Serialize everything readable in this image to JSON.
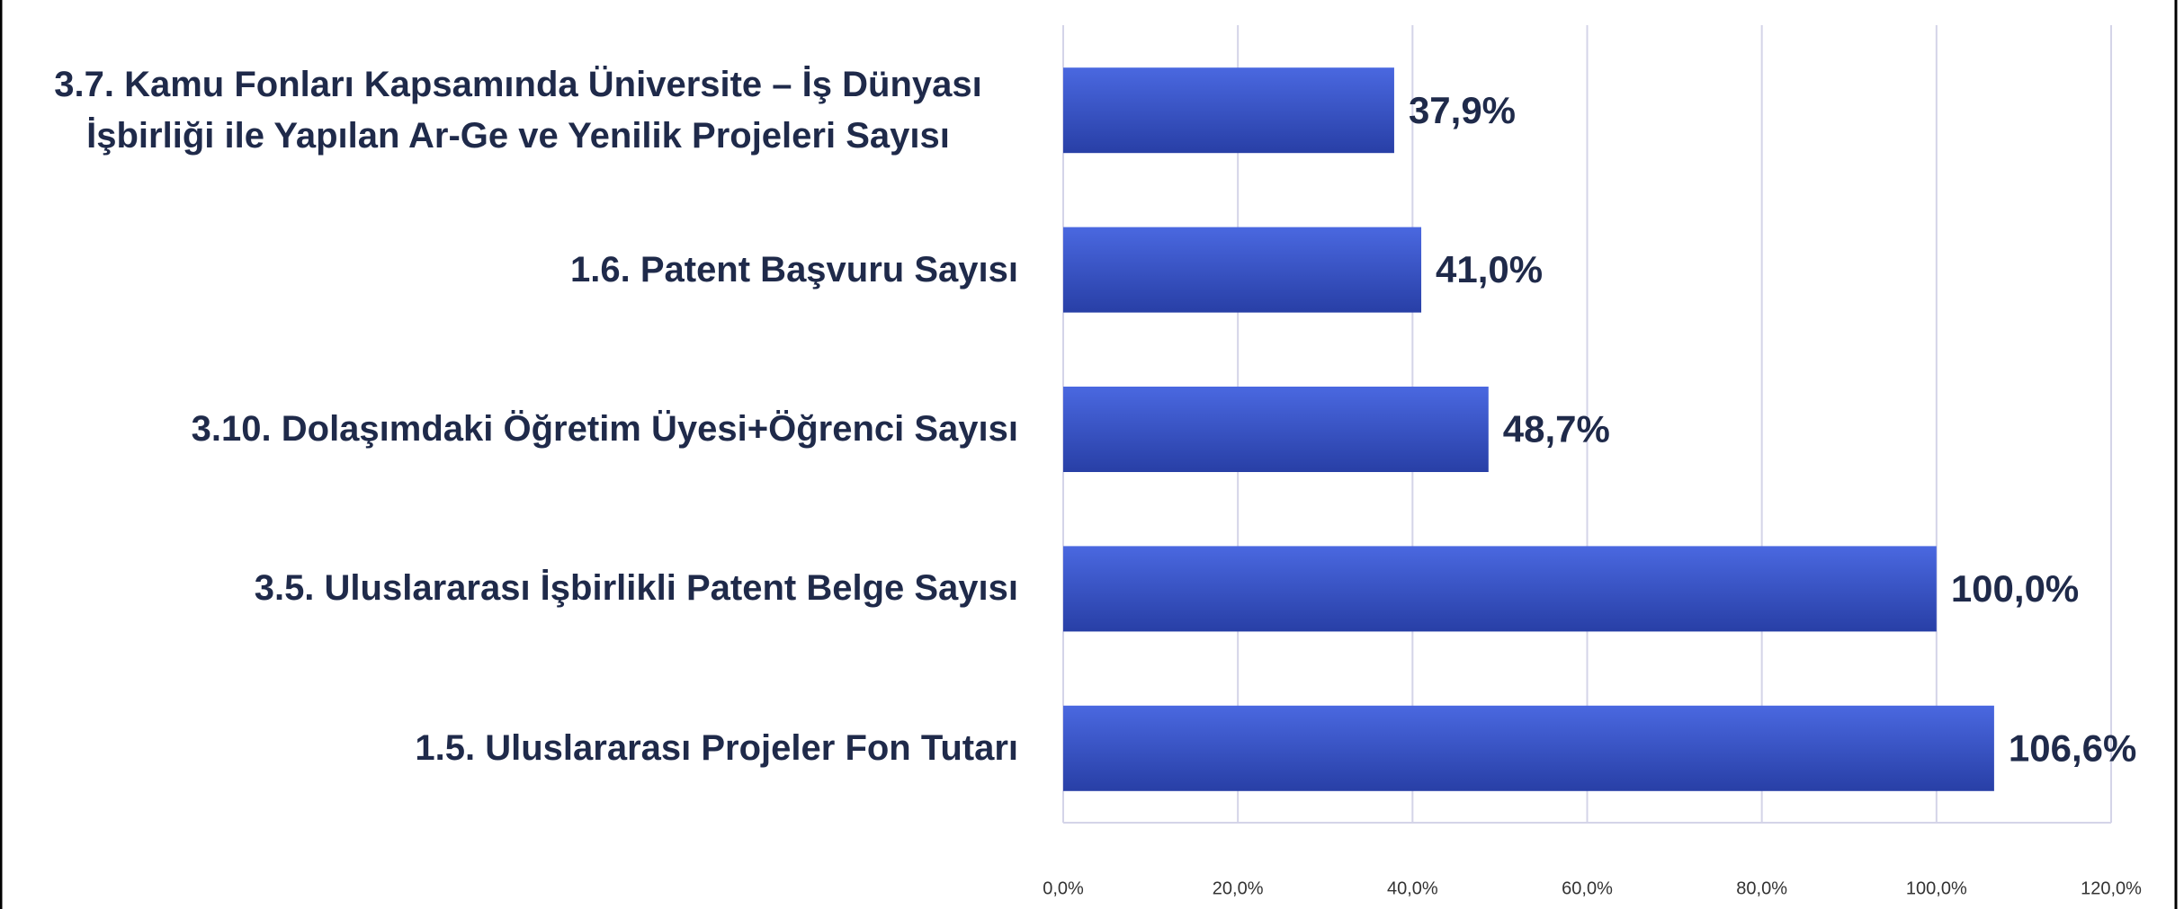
{
  "chart_data": {
    "type": "bar",
    "orientation": "horizontal",
    "categories": [
      "3.7. Kamu Fonları Kapsamında Üniversite – İş Dünyası İşbirliği ile Yapılan Ar-Ge ve Yenilik Projeleri Sayısı",
      "1.6. Patent Başvuru Sayısı",
      "3.10. Dolaşımdaki Öğretim Üyesi+Öğrenci Sayısı",
      "3.5. Uluslararası İşbirlikli Patent Belge Sayısı",
      "1.5. Uluslararası Projeler Fon Tutarı"
    ],
    "values": [
      37.9,
      41.0,
      48.7,
      100.0,
      106.6
    ],
    "value_labels": [
      "37,9%",
      "41,0%",
      "48,7%",
      "100,0%",
      "106,6%"
    ],
    "color": "#3552cf",
    "xlim": [
      0,
      120
    ],
    "xticks": [
      {
        "value": 0,
        "label": "0,0%"
      },
      {
        "value": 20,
        "label": "20,0%"
      },
      {
        "value": 40,
        "label": "40,0%"
      },
      {
        "value": 60,
        "label": "60,0%"
      },
      {
        "value": 80,
        "label": "80,0%"
      },
      {
        "value": 100,
        "label": "100,0%"
      },
      {
        "value": 120,
        "label": "120,0%"
      }
    ],
    "grid": true
  }
}
